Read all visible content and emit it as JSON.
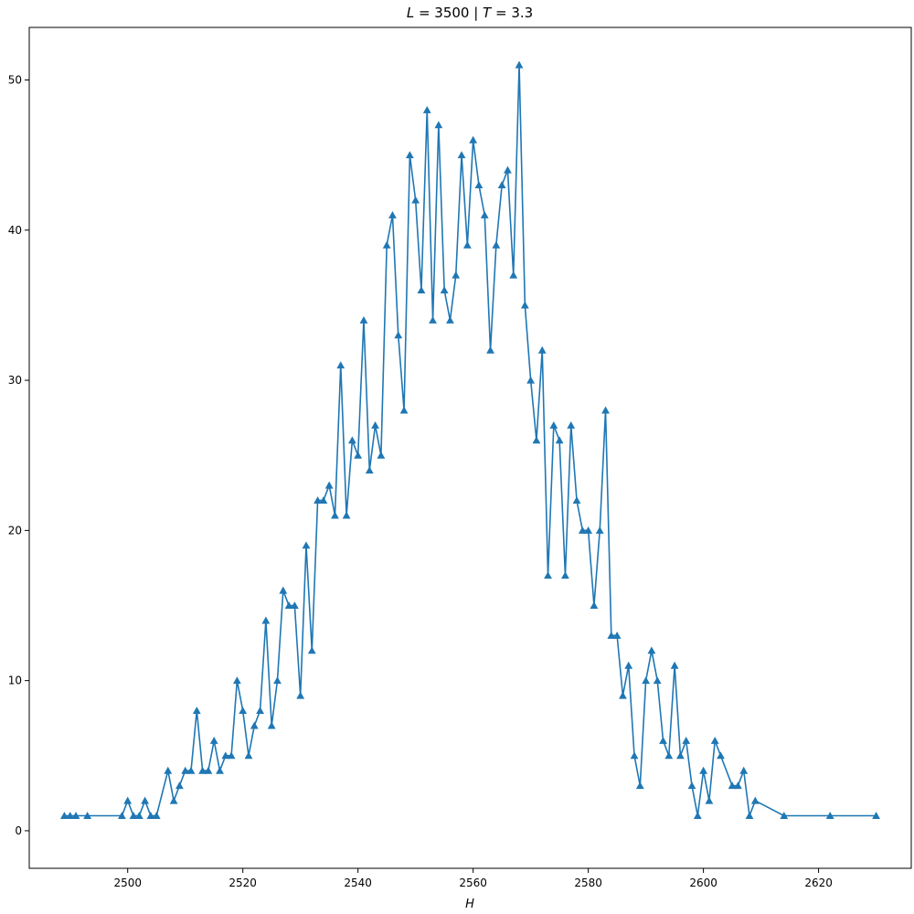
{
  "chart_data": {
    "type": "line",
    "title": "L = 3500 | T = 3.3",
    "title_parts": {
      "var1": "L",
      "eq1": " = 3500 | ",
      "var2": "T",
      "eq2": " = 3.3"
    },
    "xlabel": "H",
    "ylabel": "",
    "xlim": [
      2482.9,
      2636.1
    ],
    "ylim": [
      -2.5,
      53.5
    ],
    "xticks": [
      2500,
      2520,
      2540,
      2560,
      2580,
      2600,
      2620
    ],
    "yticks": [
      0,
      10,
      20,
      30,
      40,
      50
    ],
    "grid": false,
    "marker": "triangle-up",
    "color": "#1f77b4",
    "x": [
      2489,
      2490,
      2491,
      2493,
      2499,
      2500,
      2501,
      2502,
      2503,
      2504,
      2505,
      2507,
      2508,
      2509,
      2510,
      2511,
      2512,
      2513,
      2514,
      2515,
      2516,
      2517,
      2518,
      2519,
      2520,
      2521,
      2522,
      2523,
      2524,
      2525,
      2526,
      2527,
      2528,
      2529,
      2530,
      2531,
      2532,
      2533,
      2534,
      2535,
      2536,
      2537,
      2538,
      2539,
      2540,
      2541,
      2542,
      2543,
      2544,
      2545,
      2546,
      2547,
      2548,
      2549,
      2550,
      2551,
      2552,
      2553,
      2554,
      2555,
      2556,
      2557,
      2558,
      2559,
      2560,
      2561,
      2562,
      2563,
      2564,
      2565,
      2566,
      2567,
      2568,
      2569,
      2570,
      2571,
      2572,
      2573,
      2574,
      2575,
      2576,
      2577,
      2578,
      2579,
      2580,
      2581,
      2582,
      2583,
      2584,
      2585,
      2586,
      2587,
      2588,
      2589,
      2590,
      2591,
      2592,
      2593,
      2594,
      2595,
      2596,
      2597,
      2598,
      2599,
      2600,
      2601,
      2602,
      2603,
      2605,
      2606,
      2607,
      2608,
      2609,
      2614,
      2622,
      2630
    ],
    "y": [
      1,
      1,
      1,
      1,
      1,
      2,
      1,
      1,
      2,
      1,
      1,
      4,
      2,
      3,
      4,
      4,
      8,
      4,
      4,
      6,
      4,
      5,
      5,
      10,
      8,
      5,
      7,
      8,
      14,
      7,
      10,
      16,
      15,
      15,
      9,
      19,
      12,
      22,
      22,
      23,
      21,
      31,
      21,
      26,
      25,
      34,
      24,
      27,
      25,
      39,
      41,
      33,
      28,
      45,
      42,
      36,
      48,
      34,
      47,
      36,
      34,
      37,
      45,
      39,
      46,
      43,
      41,
      32,
      39,
      43,
      44,
      37,
      51,
      35,
      30,
      26,
      32,
      17,
      27,
      26,
      17,
      27,
      22,
      20,
      20,
      15,
      20,
      28,
      13,
      13,
      9,
      11,
      5,
      3,
      10,
      12,
      10,
      6,
      5,
      11,
      5,
      6,
      3,
      1,
      4,
      2,
      6,
      5,
      3,
      3,
      4,
      1,
      2,
      1,
      1,
      1
    ]
  }
}
